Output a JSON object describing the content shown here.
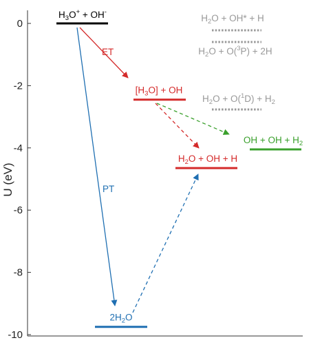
{
  "axis": {
    "ylabel": "U (eV)",
    "ylim": [
      -10,
      0
    ],
    "ticks": [
      {
        "value": 0,
        "label": "0"
      },
      {
        "value": -2,
        "label": "-2"
      },
      {
        "value": -4,
        "label": "-4"
      },
      {
        "value": -6,
        "label": "-6"
      },
      {
        "value": -8,
        "label": "-8"
      },
      {
        "value": -10,
        "label": "-10"
      }
    ]
  },
  "colors": {
    "initial": "#000000",
    "et": "#d42a2a",
    "pt": "#1f6fb2",
    "product": "#3aa02c",
    "reference": "#999999"
  },
  "levels": [
    {
      "id": "h3o-oh",
      "energy": 0.0,
      "color": "initial",
      "label": [
        {
          "t": "H"
        },
        {
          "t": "3",
          "s": "sub"
        },
        {
          "t": "O"
        },
        {
          "t": "+",
          "s": "sup"
        },
        {
          "t": " + OH"
        },
        {
          "t": "-",
          "s": "sup"
        }
      ]
    },
    {
      "id": "h3o-radical-oh",
      "energy": -2.45,
      "color": "et",
      "label": [
        {
          "t": "[H"
        },
        {
          "t": "3",
          "s": "sub"
        },
        {
          "t": "O] + OH"
        }
      ]
    },
    {
      "id": "h2o-oh-h",
      "energy": -4.65,
      "color": "et",
      "label": [
        {
          "t": "H"
        },
        {
          "t": "2",
          "s": "sub"
        },
        {
          "t": "O + OH + H"
        }
      ]
    },
    {
      "id": "oh-oh-h2",
      "energy": -4.05,
      "color": "product",
      "label": [
        {
          "t": "OH + OH + H"
        },
        {
          "t": "2",
          "s": "sub"
        }
      ]
    },
    {
      "id": "two-h2o",
      "energy": -9.75,
      "color": "pt",
      "label": [
        {
          "t": "2H"
        },
        {
          "t": "2",
          "s": "sub"
        },
        {
          "t": "O"
        }
      ]
    }
  ],
  "reference_levels": [
    {
      "id": "h2o-ohstar-h",
      "color": "reference",
      "label": [
        {
          "t": "H"
        },
        {
          "t": "2",
          "s": "sub"
        },
        {
          "t": "O + OH* + H"
        }
      ]
    },
    {
      "id": "h2o-o3p-2h",
      "color": "reference",
      "label": [
        {
          "t": "H"
        },
        {
          "t": "2",
          "s": "sub"
        },
        {
          "t": "O + O("
        },
        {
          "t": "3",
          "s": "sup"
        },
        {
          "t": "P) + 2H"
        }
      ]
    },
    {
      "id": "h2o-o1d-h2",
      "color": "reference",
      "label": [
        {
          "t": "H"
        },
        {
          "t": "2",
          "s": "sub"
        },
        {
          "t": "O + O("
        },
        {
          "t": "1",
          "s": "sup"
        },
        {
          "t": "D) + H"
        },
        {
          "t": "2",
          "s": "sub"
        }
      ]
    }
  ],
  "transitions": [
    {
      "id": "et",
      "from": "h3o-oh",
      "to": "h3o-radical-oh",
      "label": "ET",
      "color": "et",
      "style": "solid"
    },
    {
      "id": "pt",
      "from": "h3o-oh",
      "to": "two-h2o",
      "label": "PT",
      "color": "pt",
      "style": "solid"
    },
    {
      "id": "radical-to-h2o-oh-h",
      "from": "h3o-radical-oh",
      "to": "h2o-oh-h",
      "label": "",
      "color": "et",
      "style": "dashed"
    },
    {
      "id": "radical-to-oh-oh-h2",
      "from": "h3o-radical-oh",
      "to": "oh-oh-h2",
      "label": "",
      "color": "product",
      "style": "dashed"
    },
    {
      "id": "two-h2o-to-h2o-oh-h",
      "from": "two-h2o",
      "to": "h2o-oh-h",
      "label": "",
      "color": "pt",
      "style": "dashed"
    }
  ]
}
